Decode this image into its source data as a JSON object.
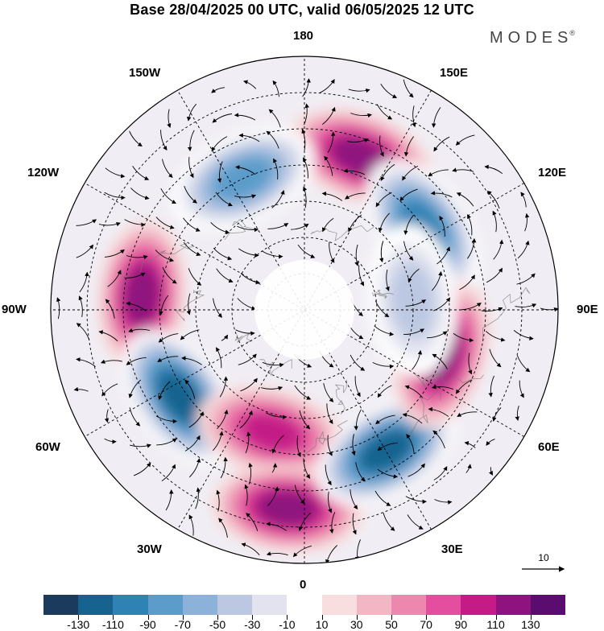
{
  "title": "Base 28/04/2025 00 UTC, valid 06/05/2025 12 UTC",
  "logo": "MODES",
  "logo_mark": "®",
  "longitude_labels": {
    "lon_180": "180",
    "lon_150e": "150E",
    "lon_120e": "120E",
    "lon_90e": "90E",
    "lon_60e": "60E",
    "lon_30e": "30E",
    "lon_0": "0",
    "lon_30w": "30W",
    "lon_60w": "60W",
    "lon_90w": "90W",
    "lon_120w": "120W",
    "lon_150w": "150W"
  },
  "reference_vector": {
    "label": "10"
  },
  "colorbar": {
    "colors": [
      "#1b3a5c",
      "#17638f",
      "#2f82b4",
      "#5c9ccb",
      "#8cb2d9",
      "#bcc8e2",
      "#e2e3ef",
      "#ffffff",
      "#f8dede",
      "#f2b6c4",
      "#ec87ad",
      "#e34f9e",
      "#c41b87",
      "#8e137e",
      "#5a0c6f"
    ],
    "tick_labels": [
      "-130",
      "-110",
      "-90",
      "-70",
      "-50",
      "-30",
      "-10",
      "10",
      "30",
      "50",
      "70",
      "90",
      "110",
      "130"
    ]
  },
  "anomaly_centers": [
    {
      "sign": "positive",
      "level": 90,
      "lon": 160,
      "lat": 45
    },
    {
      "sign": "negative",
      "level": -90,
      "lon": 125,
      "lat": 50
    },
    {
      "sign": "negative",
      "level": -70,
      "lon": -155,
      "lat": 50
    },
    {
      "sign": "positive",
      "level": 90,
      "lon": -95,
      "lat": 45
    },
    {
      "sign": "negative",
      "level": -110,
      "lon": -55,
      "lat": 48
    },
    {
      "sign": "positive",
      "level": 70,
      "lon": -15,
      "lat": 55
    },
    {
      "sign": "positive",
      "level": 90,
      "lon": -5,
      "lat": 35
    },
    {
      "sign": "negative",
      "level": -110,
      "lon": 30,
      "lat": 45
    },
    {
      "sign": "positive",
      "level": 90,
      "lon": 72,
      "lat": 50
    },
    {
      "sign": "negative",
      "level": -30,
      "lon": 95,
      "lat": 60
    }
  ]
}
